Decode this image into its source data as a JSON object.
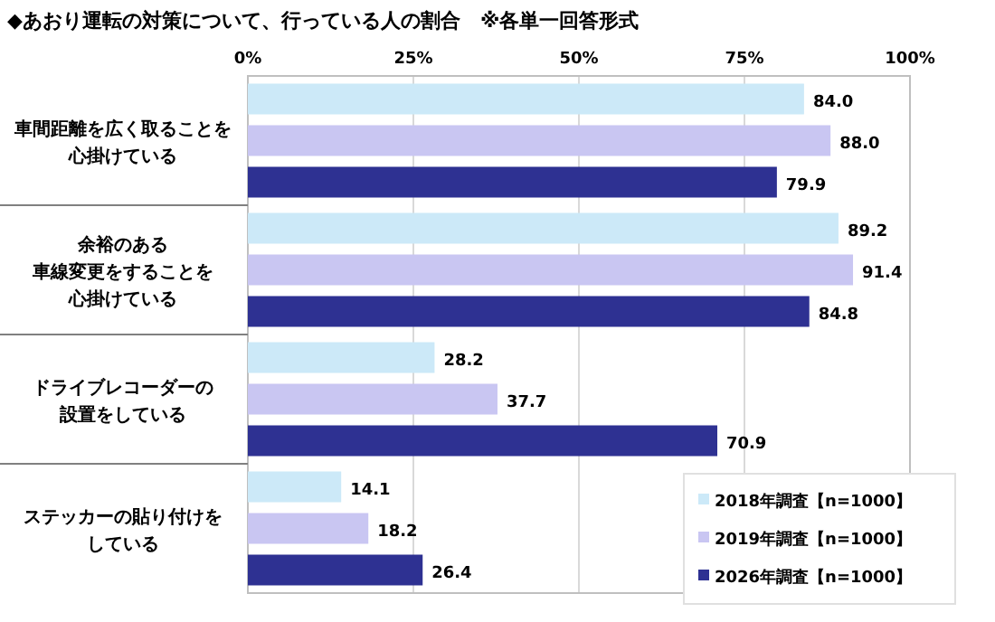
{
  "chart_data": {
    "type": "bar",
    "orientation": "horizontal",
    "title": "◆あおり運転の対策について、行っている人の割合　※各単一回答形式",
    "categories": [
      "車間距離を広く取ることを心掛けている",
      "余裕のある車線変更をすることを心掛けている",
      "ドライブレコーダーの設置をしている",
      "ステッカーの貼り付けをしている"
    ],
    "series": [
      {
        "name": "2018年調査【n=1000】",
        "color": "#cce9f8",
        "values": [
          84.0,
          89.2,
          28.2,
          14.1
        ],
        "value_labels": [
          "84.0",
          "89.2",
          "28.2",
          "14.1"
        ]
      },
      {
        "name": "2019年調査【n=1000】",
        "color": "#c9c6f2",
        "values": [
          88.0,
          91.4,
          37.7,
          18.2
        ],
        "value_labels": [
          "88.0",
          "91.4",
          "37.7",
          "18.2"
        ]
      },
      {
        "name": "2026年調査【n=1000】",
        "color": "#2e3192",
        "values": [
          79.9,
          84.8,
          70.9,
          26.4
        ],
        "value_labels": [
          "79.9",
          "84.8",
          "70.9",
          "26.4"
        ]
      }
    ],
    "xlim": [
      0,
      100
    ],
    "xticks": [
      {
        "value": 0,
        "label": "0%"
      },
      {
        "value": 25,
        "label": "25%"
      },
      {
        "value": 50,
        "label": "50%"
      },
      {
        "value": 75,
        "label": "75%"
      },
      {
        "value": 100,
        "label": "100%"
      }
    ],
    "grid": "x",
    "legend": "bottom right"
  }
}
